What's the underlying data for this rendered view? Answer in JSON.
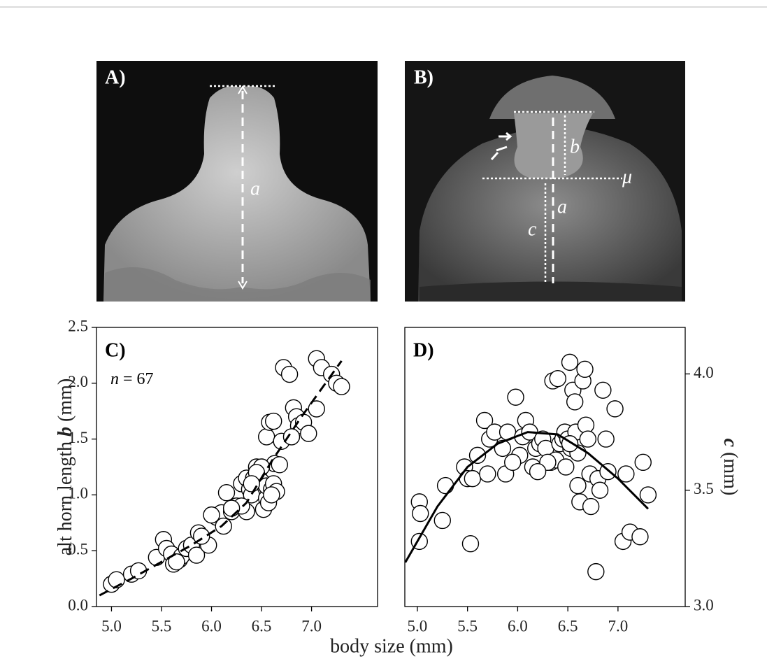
{
  "photos": [
    {
      "label": "A)",
      "annotations": [
        "a"
      ]
    },
    {
      "label": "B)",
      "annotations": [
        "b",
        "a",
        "c",
        "μ"
      ]
    }
  ],
  "figure": {
    "xlabel": "body size (mm)"
  },
  "chart_data": [
    {
      "type": "scatter",
      "panel_label": "C)",
      "annotation_parts": [
        "n",
        " = 67"
      ],
      "ylabel_parts": [
        "alt horn length ",
        "b",
        " (mm)"
      ],
      "marker_fill": "#ffffff",
      "marker_edge": "#000000",
      "xlim": [
        4.85,
        7.66
      ],
      "ylim": [
        0,
        2.5
      ],
      "xticks": [
        {
          "value": 5.0,
          "label": "5.0"
        },
        5.5,
        {
          "value": 6.0,
          "label": "6.0"
        },
        6.5,
        {
          "value": 7.0,
          "label": "7.0"
        }
      ],
      "yticks": [
        {
          "value": 0,
          "label": "0.0"
        },
        0.5,
        {
          "value": 1.0,
          "label": "1.0"
        },
        1.5,
        {
          "value": 2.0,
          "label": "2.0"
        },
        2.5
      ],
      "x": [
        5.0,
        5.05,
        5.2,
        5.27,
        5.45,
        5.52,
        5.55,
        5.6,
        5.62,
        5.68,
        5.7,
        5.75,
        5.8,
        5.87,
        5.85,
        5.97,
        6.05,
        6.1,
        6.12,
        6.15,
        6.2,
        6.25,
        6.3,
        6.35,
        6.35,
        6.38,
        6.4,
        6.42,
        6.45,
        6.47,
        6.5,
        6.52,
        6.55,
        6.55,
        6.57,
        6.6,
        6.62,
        6.65,
        6.63,
        6.55,
        6.58,
        6.62,
        6.7,
        6.72,
        6.78,
        6.82,
        6.85,
        6.87,
        6.8,
        6.92,
        6.97,
        7.05,
        7.1,
        7.2,
        7.25,
        7.3,
        7.05,
        6.5,
        6.45,
        6.3,
        5.65,
        5.9,
        6.2,
        6.6,
        6.68,
        6.4,
        6.0
      ],
      "values": [
        0.2,
        0.24,
        0.29,
        0.32,
        0.44,
        0.6,
        0.52,
        0.47,
        0.38,
        0.42,
        0.45,
        0.52,
        0.55,
        0.66,
        0.46,
        0.55,
        0.8,
        0.84,
        0.72,
        1.02,
        0.85,
        0.9,
        1.1,
        1.15,
        0.85,
        1.05,
        1.0,
        1.15,
        1.25,
        1.2,
        1.12,
        0.87,
        0.97,
        1.08,
        0.93,
        1.05,
        1.1,
        1.03,
        1.28,
        1.52,
        1.65,
        1.66,
        1.48,
        2.14,
        2.08,
        1.78,
        1.7,
        1.62,
        1.52,
        1.65,
        1.55,
        2.22,
        2.14,
        2.08,
        2.0,
        1.97,
        1.77,
        1.25,
        1.2,
        0.9,
        0.4,
        0.63,
        0.88,
        1.0,
        1.27,
        1.1,
        0.82
      ],
      "fit": {
        "style": "dashed",
        "x": [
          4.88,
          5.2,
          5.5,
          5.8,
          6.1,
          6.35,
          6.6,
          6.9,
          7.3
        ],
        "y": [
          0.1,
          0.25,
          0.4,
          0.55,
          0.72,
          0.93,
          1.3,
          1.7,
          2.2
        ]
      }
    },
    {
      "type": "scatter",
      "panel_label": "D)",
      "ylabel_parts": [
        "c",
        " (mm)"
      ],
      "marker_fill": "#ffffff",
      "marker_edge": "#000000",
      "xlim": [
        4.875,
        7.67
      ],
      "y2lim": [
        3.0,
        4.2
      ],
      "xticks": [
        {
          "value": 5.0,
          "label": "5.0"
        },
        5.5,
        {
          "value": 6.0,
          "label": "6.0"
        },
        6.5,
        {
          "value": 7.0,
          "label": "7.0"
        }
      ],
      "y2ticks": [
        {
          "value": 3.0,
          "label": "3.0"
        },
        3.5,
        {
          "value": 4.0,
          "label": "4.0"
        }
      ],
      "axis": "y2",
      "x": [
        5.02,
        5.03,
        5.02,
        5.25,
        5.28,
        5.47,
        5.5,
        5.55,
        5.53,
        5.6,
        5.67,
        5.7,
        5.72,
        5.77,
        5.85,
        5.88,
        5.9,
        5.98,
        6.02,
        6.05,
        6.08,
        6.12,
        6.15,
        6.18,
        6.22,
        6.25,
        6.28,
        6.33,
        6.35,
        6.38,
        6.4,
        6.42,
        6.45,
        6.47,
        6.5,
        6.52,
        6.53,
        6.55,
        6.57,
        6.58,
        6.6,
        6.6,
        6.62,
        6.65,
        6.67,
        6.68,
        6.7,
        6.72,
        6.73,
        6.78,
        6.8,
        6.82,
        6.85,
        6.88,
        6.9,
        6.97,
        7.05,
        7.08,
        7.12,
        7.22,
        7.25,
        7.3,
        6.52,
        6.3,
        5.95,
        6.2,
        6.48
      ],
      "values": [
        3.45,
        3.4,
        3.28,
        3.37,
        3.52,
        3.6,
        3.55,
        3.55,
        3.27,
        3.65,
        3.8,
        3.57,
        3.72,
        3.75,
        3.68,
        3.57,
        3.75,
        3.9,
        3.65,
        3.73,
        3.8,
        3.75,
        3.6,
        3.68,
        3.7,
        3.72,
        3.68,
        3.62,
        3.97,
        3.63,
        3.98,
        3.7,
        3.72,
        3.75,
        3.72,
        4.05,
        3.68,
        3.93,
        3.88,
        3.75,
        3.66,
        3.52,
        3.45,
        3.97,
        4.02,
        3.78,
        3.72,
        3.57,
        3.43,
        3.15,
        3.55,
        3.5,
        3.93,
        3.72,
        3.58,
        3.85,
        3.28,
        3.57,
        3.32,
        3.3,
        3.62,
        3.48,
        3.7,
        3.62,
        3.62,
        3.58,
        3.6
      ],
      "fit": {
        "style": "solid",
        "x": [
          4.88,
          5.2,
          5.5,
          5.8,
          6.1,
          6.4,
          6.7,
          7.0,
          7.3
        ],
        "y": [
          3.19,
          3.43,
          3.6,
          3.7,
          3.75,
          3.74,
          3.66,
          3.55,
          3.42
        ]
      }
    }
  ]
}
